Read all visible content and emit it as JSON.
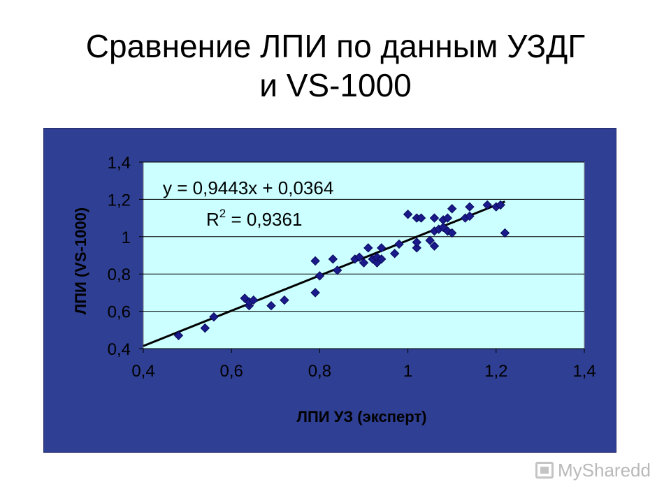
{
  "slide": {
    "title_line1": "Сравнение ЛПИ по данным УЗДГ",
    "title_line2": "и VS-1000"
  },
  "watermark": {
    "text": "MySharedd",
    "icon": "presentation-icon",
    "color": "#b9b9b9"
  },
  "colors": {
    "panel": "#2f3f93",
    "plot_area": "#ccffff",
    "marker": "#1a1a8c",
    "trendline": "#000000",
    "gridline": "#000000"
  },
  "chart_data": {
    "type": "scatter",
    "title": "",
    "xlabel": "ЛПИ УЗ (эксперт)",
    "ylabel": "ЛПИ (VS-1000)",
    "xlim": [
      0.4,
      1.4
    ],
    "ylim": [
      0.4,
      1.4
    ],
    "xticks": [
      "0,4",
      "0,6",
      "0,8",
      "1",
      "1,2",
      "1,4"
    ],
    "yticks": [
      "0,4",
      "0,6",
      "0,8",
      "1",
      "1,2",
      "1,4"
    ],
    "grid": "horizontal",
    "legend": "none",
    "marker": "diamond",
    "trendline": {
      "slope": 0.9443,
      "intercept": 0.0364,
      "equation": "y = 0,9443x + 0,0364",
      "r2_label": "R",
      "r2_sup": "2",
      "r2_value": " = 0,9361"
    },
    "series": [
      {
        "points": [
          [
            0.48,
            0.47
          ],
          [
            0.54,
            0.51
          ],
          [
            0.56,
            0.57
          ],
          [
            0.63,
            0.67
          ],
          [
            0.64,
            0.63
          ],
          [
            0.64,
            0.65
          ],
          [
            0.65,
            0.66
          ],
          [
            0.69,
            0.63
          ],
          [
            0.72,
            0.66
          ],
          [
            0.79,
            0.7
          ],
          [
            0.79,
            0.87
          ],
          [
            0.8,
            0.79
          ],
          [
            0.83,
            0.88
          ],
          [
            0.84,
            0.82
          ],
          [
            0.88,
            0.88
          ],
          [
            0.89,
            0.89
          ],
          [
            0.9,
            0.86
          ],
          [
            0.91,
            0.94
          ],
          [
            0.92,
            0.88
          ],
          [
            0.93,
            0.86
          ],
          [
            0.93,
            0.89
          ],
          [
            0.94,
            0.88
          ],
          [
            0.94,
            0.94
          ],
          [
            0.97,
            0.91
          ],
          [
            0.98,
            0.96
          ],
          [
            1.0,
            1.12
          ],
          [
            1.02,
            0.94
          ],
          [
            1.02,
            0.97
          ],
          [
            1.02,
            1.1
          ],
          [
            1.03,
            1.1
          ],
          [
            1.05,
            0.98
          ],
          [
            1.06,
            1.03
          ],
          [
            1.06,
            0.95
          ],
          [
            1.06,
            1.1
          ],
          [
            1.07,
            1.04
          ],
          [
            1.08,
            1.05
          ],
          [
            1.08,
            1.09
          ],
          [
            1.09,
            1.03
          ],
          [
            1.09,
            1.1
          ],
          [
            1.1,
            1.02
          ],
          [
            1.1,
            1.15
          ],
          [
            1.13,
            1.1
          ],
          [
            1.14,
            1.11
          ],
          [
            1.14,
            1.16
          ],
          [
            1.18,
            1.17
          ],
          [
            1.2,
            1.16
          ],
          [
            1.21,
            1.17
          ],
          [
            1.22,
            1.02
          ]
        ]
      }
    ]
  }
}
